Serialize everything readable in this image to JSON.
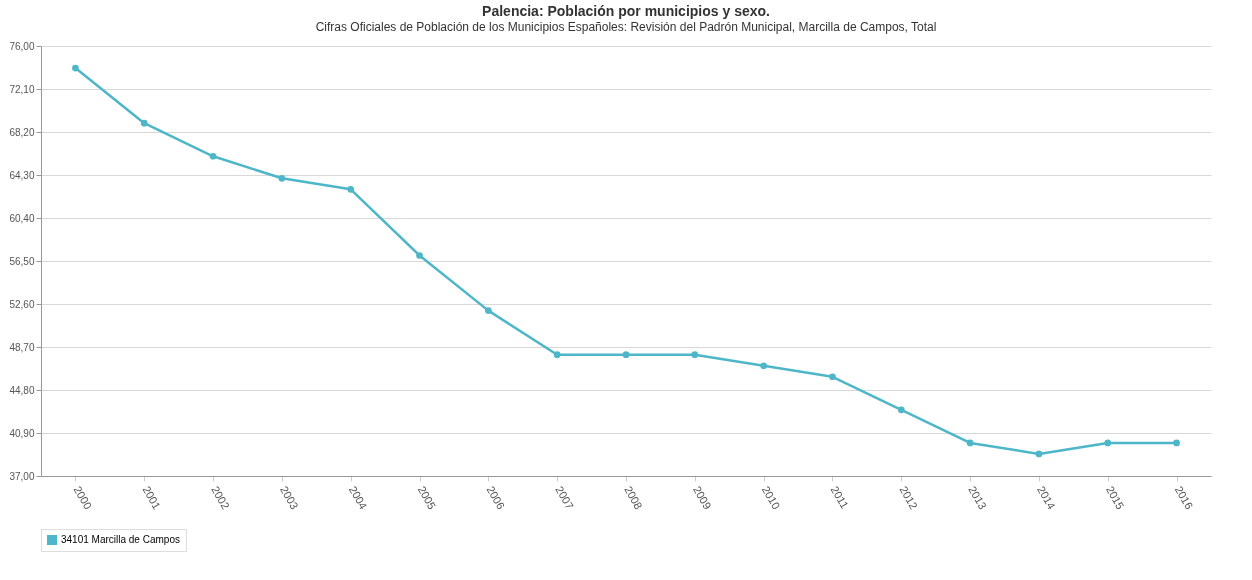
{
  "chart_data": {
    "type": "line",
    "title": "Palencia: Población por municipios y sexo.",
    "subtitle": "Cifras Oficiales de Población de los Municipios Españoles: Revisión del Padrón Municipal, Marcilla de Campos, Total",
    "categories": [
      "2000",
      "2001",
      "2002",
      "2003",
      "2004",
      "2005",
      "2006",
      "2007",
      "2008",
      "2009",
      "2010",
      "2011",
      "2012",
      "2013",
      "2014",
      "2015",
      "2016"
    ],
    "series": [
      {
        "name": "34101 Marcilla de Campos",
        "color": "#4db6c8",
        "values": [
          74,
          69,
          66,
          64,
          63,
          57,
          52,
          48,
          48,
          48,
          47,
          46,
          43,
          40,
          39,
          40,
          40
        ]
      }
    ],
    "ylim": [
      37,
      76
    ],
    "yticks": [
      {
        "value": 37,
        "label": "37,00"
      },
      {
        "value": 40.9,
        "label": "40,90"
      },
      {
        "value": 44.8,
        "label": "44,80"
      },
      {
        "value": 48.7,
        "label": "48,70"
      },
      {
        "value": 52.6,
        "label": "52,60"
      },
      {
        "value": 56.5,
        "label": "56,50"
      },
      {
        "value": 60.4,
        "label": "60,40"
      },
      {
        "value": 64.3,
        "label": "64,30"
      },
      {
        "value": 68.2,
        "label": "68,20"
      },
      {
        "value": 72.1,
        "label": "72,10"
      },
      {
        "value": 76,
        "label": "76,00"
      }
    ],
    "grid": "y",
    "legend": "bottom",
    "marker": "circle",
    "line_style": "solid"
  }
}
